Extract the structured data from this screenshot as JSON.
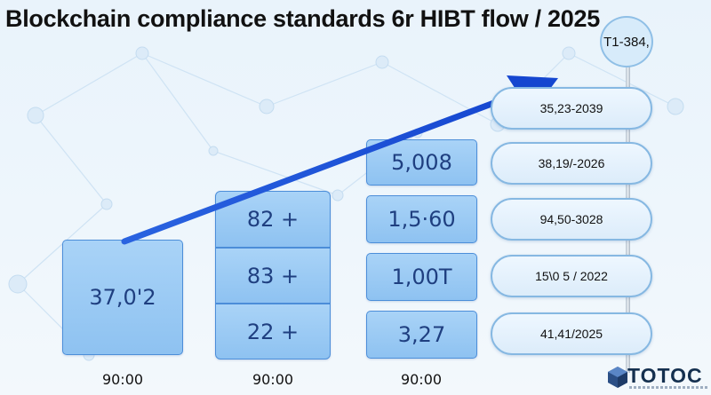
{
  "title": "Blockchain compliance standards 6r HIBT flow / 2025",
  "columns": [
    {
      "label": "90:00",
      "blocks": [
        "37,0'2"
      ]
    },
    {
      "label": "90:00",
      "blocks": [
        "82 +",
        "83 +",
        "22 +"
      ]
    },
    {
      "label": "90:00",
      "blocks": [
        "5,008",
        "1,5·60",
        "1,00T",
        "3,27"
      ]
    }
  ],
  "pole_cap": "T1-384,",
  "milestones": [
    "35,23-2039",
    "38,19/-2026",
    "94,50-3028",
    "15\\0 5 / 2022",
    "41,41/2025"
  ],
  "logo": {
    "name": "TOTOC",
    "icon": "cube-logo-icon"
  },
  "colors": {
    "block": "#9ccbf4",
    "block_border": "#4c8ed9",
    "arrow": "#1848d4",
    "pill_border": "#86b8e2"
  }
}
